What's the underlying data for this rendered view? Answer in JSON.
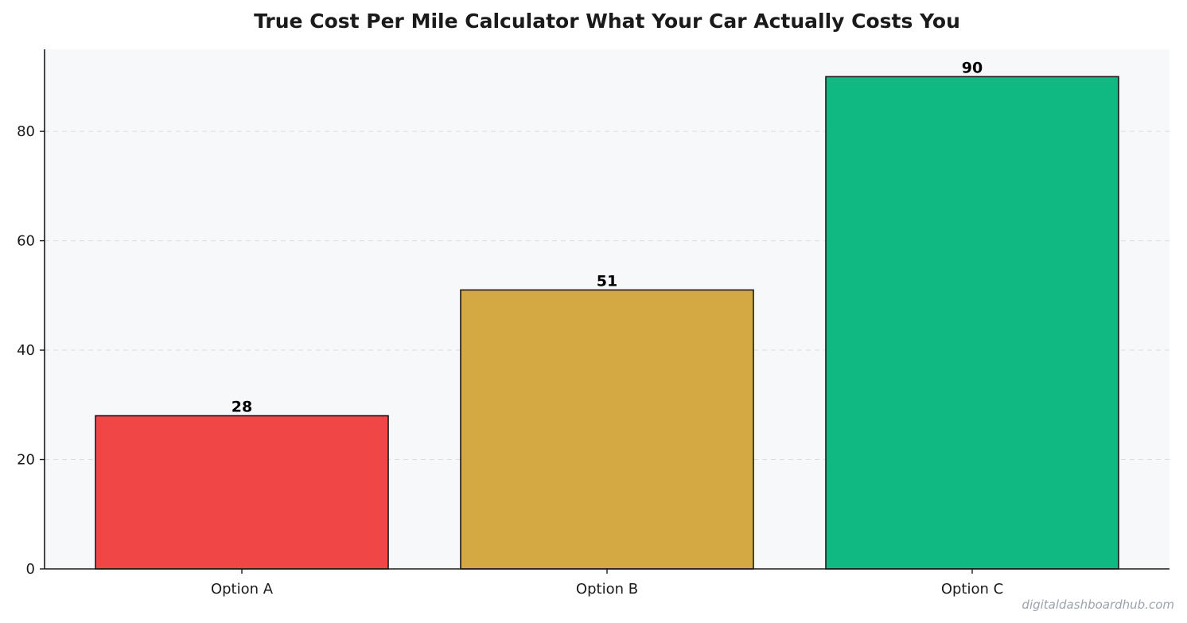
{
  "chart_data": {
    "type": "bar",
    "title": "True Cost Per Mile Calculator  What Your Car Actually Costs You",
    "xlabel": "",
    "ylabel": "",
    "categories": [
      "Option A",
      "Option B",
      "Option C"
    ],
    "values": [
      28,
      51,
      90
    ],
    "value_labels": [
      "28",
      "51",
      "90"
    ],
    "colors": [
      "#f04646",
      "#d4a843",
      "#10b981"
    ],
    "bar_edge_color": "#1a1a1a",
    "ylim": [
      0,
      95
    ],
    "yticks": [
      0,
      20,
      40,
      60,
      80
    ],
    "ytick_labels": [
      "0",
      "20",
      "40",
      "60",
      "80"
    ],
    "grid": "y-dashed",
    "plot_background": "#f7f8fa",
    "legend": "none"
  },
  "watermark": "digitaldashboardhub.com"
}
